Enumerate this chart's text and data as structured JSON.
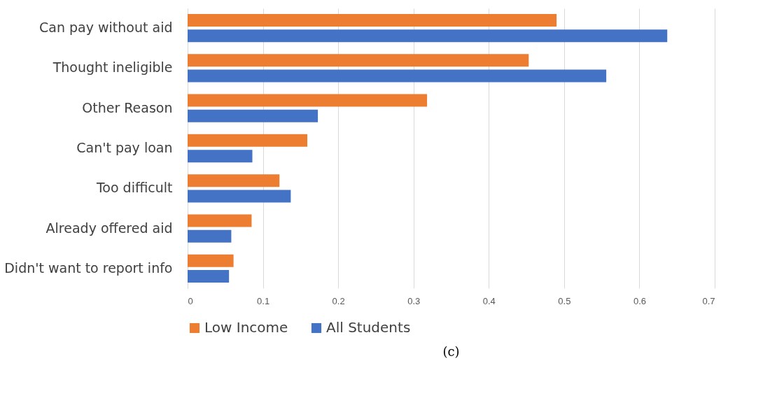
{
  "chart_data": {
    "type": "bar",
    "orientation": "horizontal",
    "categories": [
      "Can pay without aid",
      "Thought ineligible",
      "Other Reason",
      "Can't pay loan",
      "Too difficult",
      "Already offered aid",
      "Didn't want to report info"
    ],
    "series": [
      {
        "name": "Low Income",
        "color": "#ed7d31",
        "values": [
          0.49,
          0.453,
          0.318,
          0.159,
          0.122,
          0.085,
          0.061
        ]
      },
      {
        "name": "All Students",
        "color": "#4472c4",
        "values": [
          0.637,
          0.556,
          0.173,
          0.086,
          0.137,
          0.058,
          0.055
        ]
      }
    ],
    "xlim": [
      0,
      0.7
    ],
    "xticks": [
      0,
      0.1,
      0.2,
      0.3,
      0.4,
      0.5,
      0.6,
      0.7
    ],
    "grid": "x",
    "legend": "bottom",
    "annotations": [
      "(c)"
    ]
  }
}
